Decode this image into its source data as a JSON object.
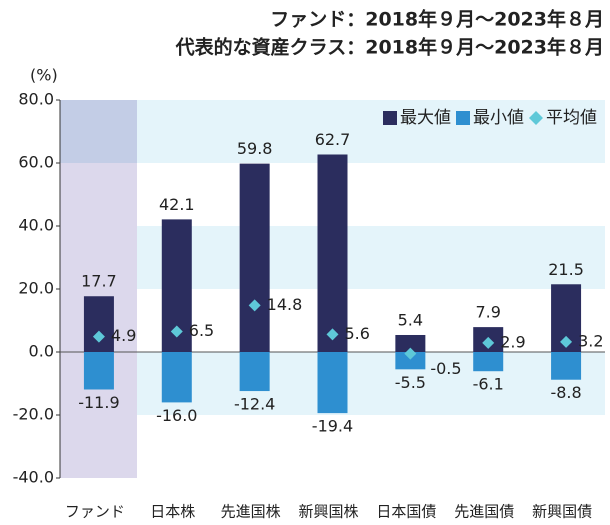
{
  "chart_data": {
    "type": "bar",
    "title": "ファンド：2018年９月～2023年８月",
    "subtitle": "代表的な資産クラス：2018年９月～2023年８月",
    "y_label": "(%)",
    "categories": [
      "ファンド",
      "日本株",
      "先進国株",
      "新興国株",
      "日本国債",
      "先進国債",
      "新興国債"
    ],
    "series": [
      {
        "name": "最大値",
        "color": "#2b2d5e",
        "values": [
          17.7,
          42.1,
          59.8,
          62.7,
          5.4,
          7.9,
          21.5
        ],
        "value_labels": [
          "17.7",
          "42.1",
          "59.8",
          "62.7",
          "5.4",
          "7.9",
          "21.5"
        ]
      },
      {
        "name": "最小値",
        "color": "#2e8fd0",
        "values": [
          -11.9,
          -16.0,
          -12.4,
          -19.4,
          -5.5,
          -6.1,
          -8.8
        ],
        "value_labels": [
          "-11.9",
          "-16.0",
          "-12.4",
          "-19.4",
          "-5.5",
          "-6.1",
          "-8.8"
        ]
      },
      {
        "name": "平均値",
        "color": "#5ec8d8",
        "values": [
          4.9,
          6.5,
          14.8,
          5.6,
          -0.5,
          2.9,
          3.2
        ],
        "value_labels": [
          "4.9",
          "6.5",
          "14.8",
          "5.6",
          "-0.5",
          "2.9",
          "3.2"
        ]
      }
    ],
    "ylim": [
      -40,
      80
    ],
    "yticks": [
      {
        "value": -40,
        "label": "-40.0"
      },
      {
        "value": -20,
        "label": "-20.0"
      },
      {
        "value": 0,
        "label": "0.0"
      },
      {
        "value": 20,
        "label": "20.0"
      },
      {
        "value": 40,
        "label": "40.0"
      },
      {
        "value": 60,
        "label": "60.0"
      },
      {
        "value": 80,
        "label": "80.0"
      }
    ],
    "legend": "top-right"
  }
}
